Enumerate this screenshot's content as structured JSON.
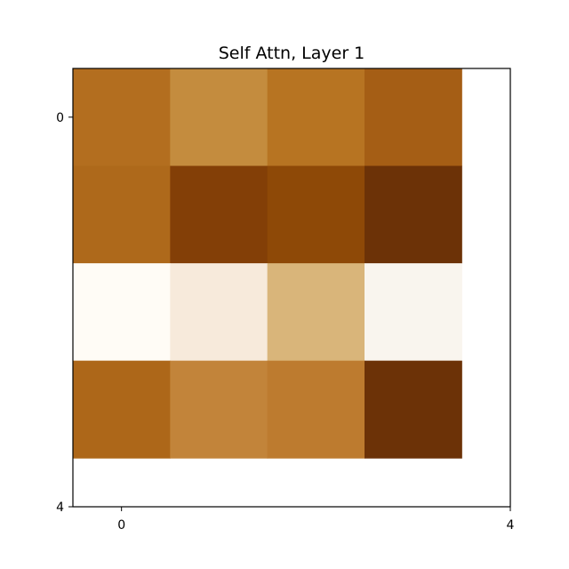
{
  "chart_data": {
    "type": "heatmap",
    "title": "Self Attn, Layer 1",
    "xlabel": "",
    "ylabel": "",
    "x_tick_labels": [
      "0",
      "4"
    ],
    "y_tick_labels": [
      "0",
      "4"
    ],
    "xlim": [
      -0.5,
      4
    ],
    "ylim": [
      4,
      -0.5
    ],
    "grid": false,
    "legend": "none",
    "rows": 4,
    "cols": 4,
    "cell_colors": [
      [
        "#b36e1f",
        "#c48c3e",
        "#b77422",
        "#a55e15"
      ],
      [
        "#ae691b",
        "#833f07",
        "#8e4907",
        "#6c3207"
      ],
      [
        "#fffcf6",
        "#f7eadb",
        "#d9b57a",
        "#f9f5ee"
      ],
      [
        "#ad6719",
        "#c2843a",
        "#bd7b2f",
        "#6c3207"
      ]
    ]
  }
}
